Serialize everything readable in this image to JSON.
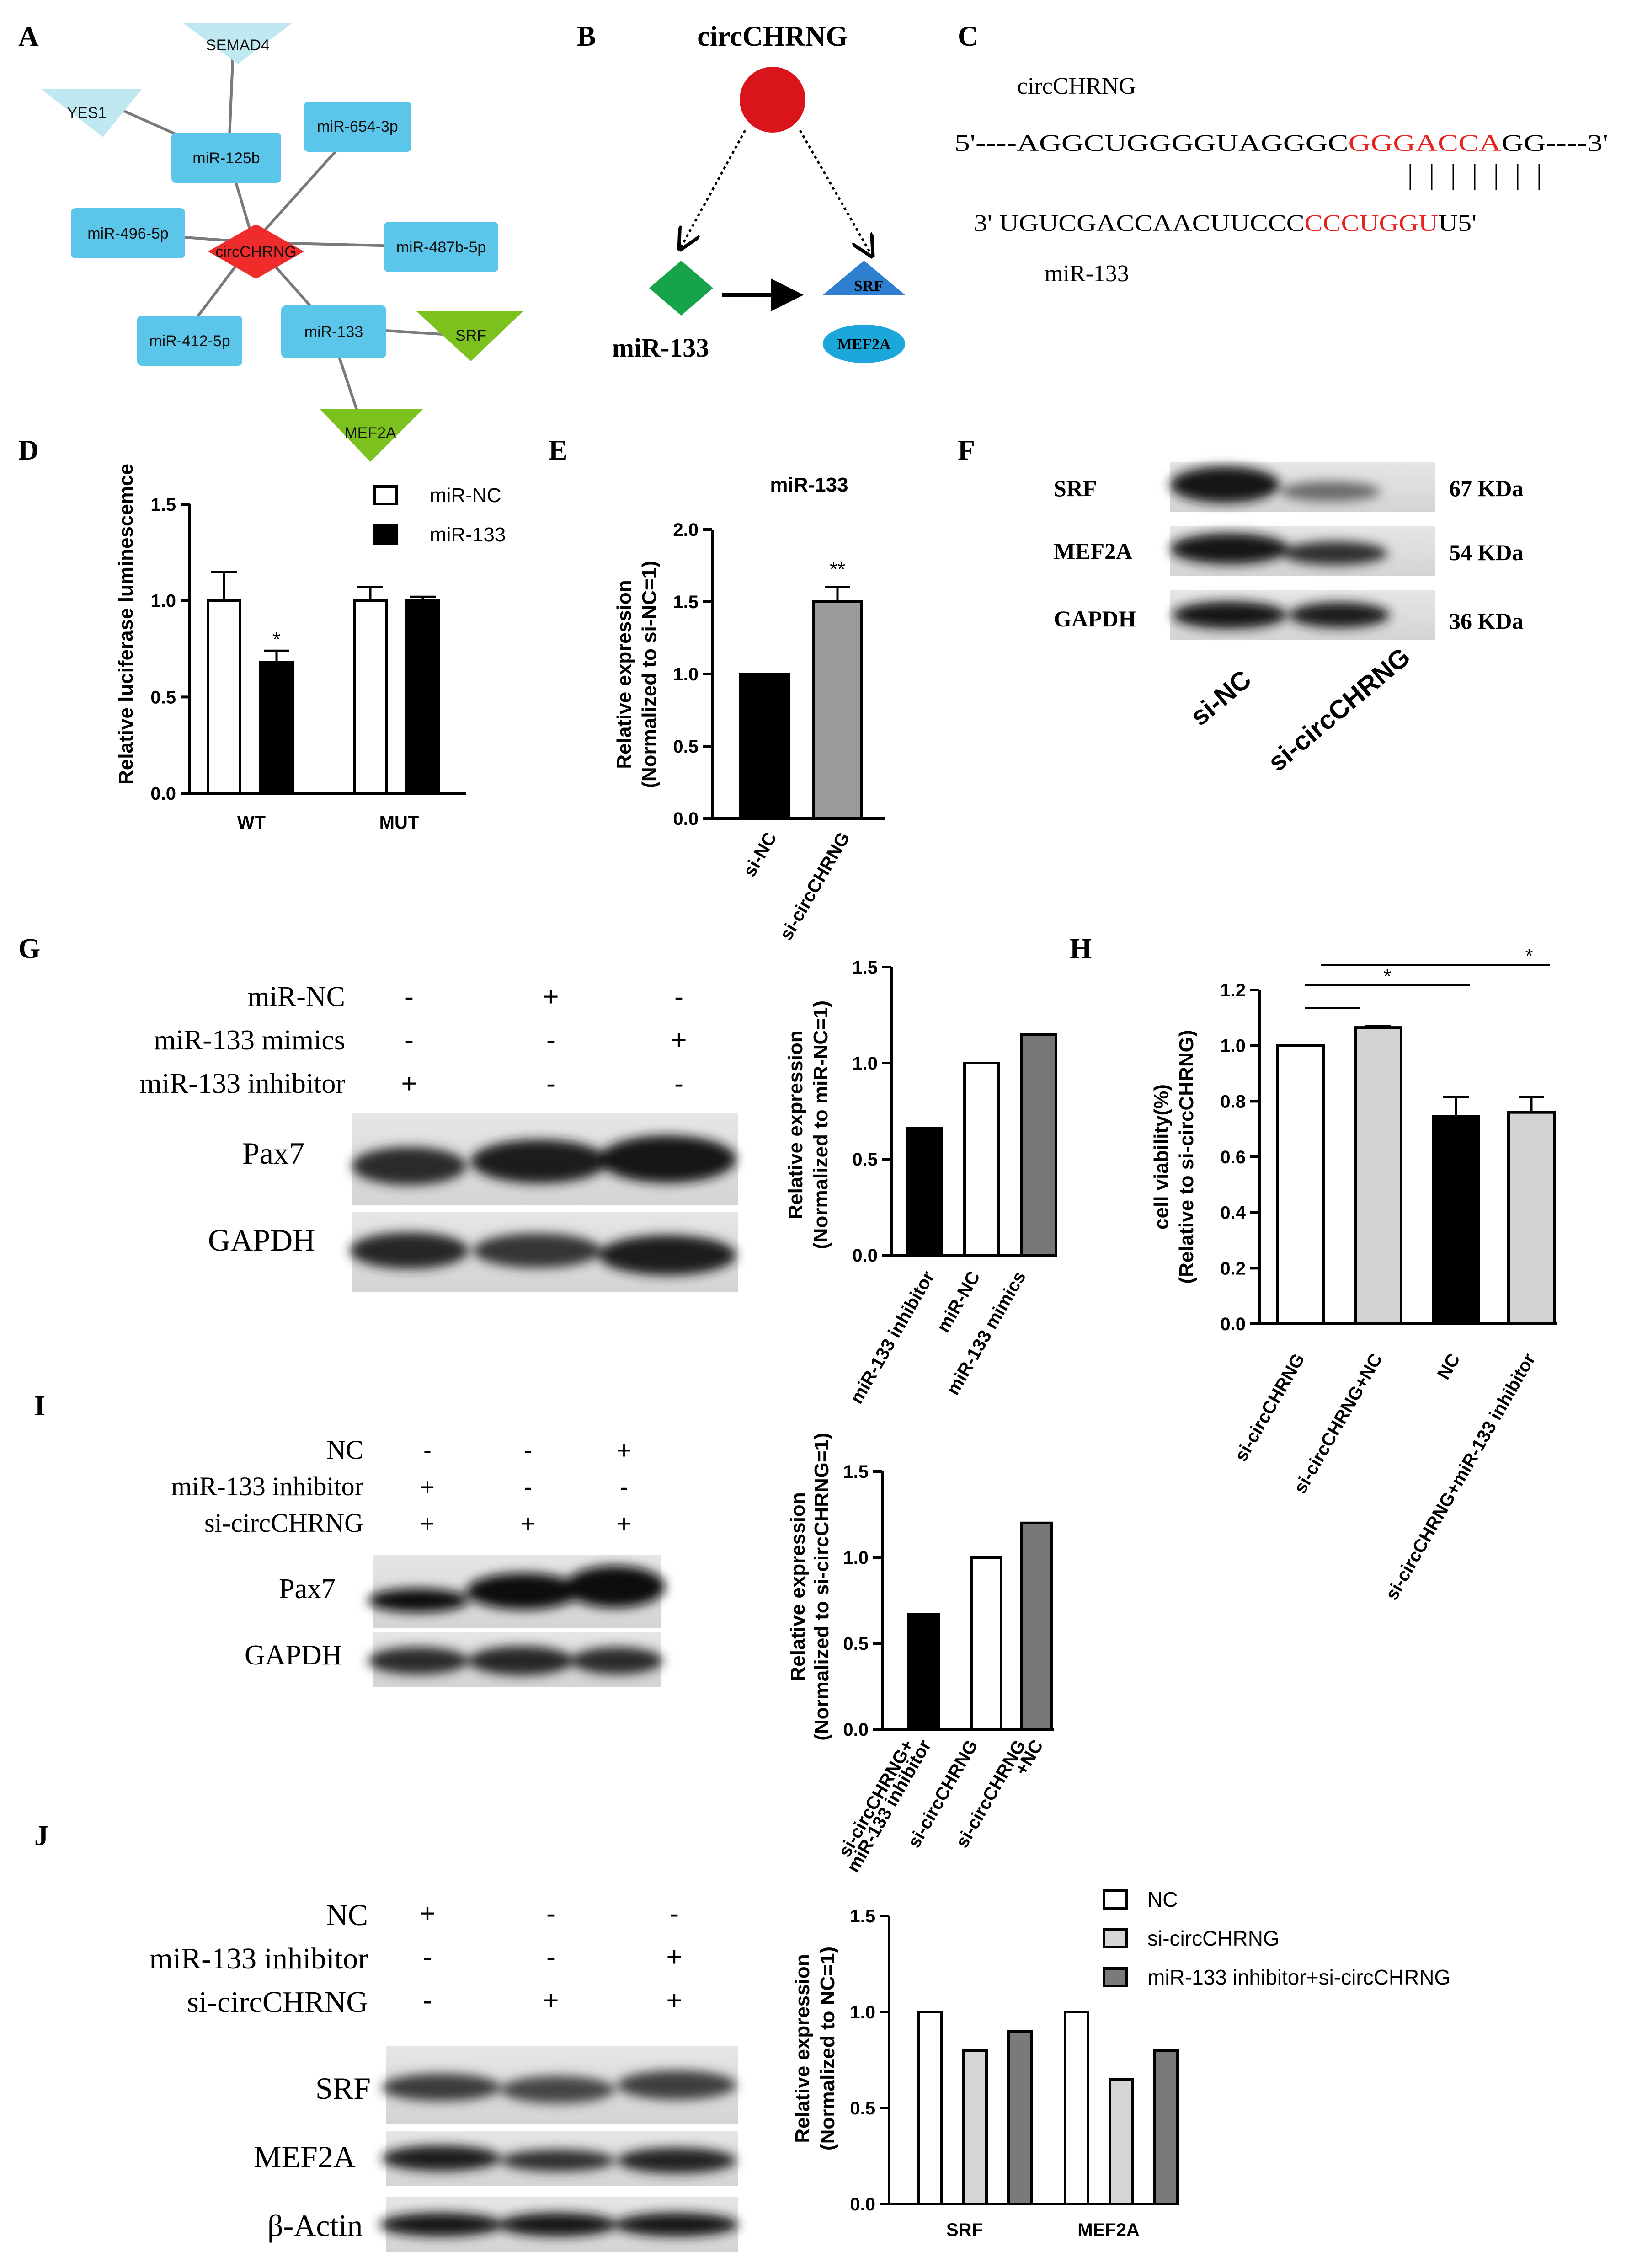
{
  "panels": {
    "A": "A",
    "B": "B",
    "C": "C",
    "D": "D",
    "E": "E",
    "F": "F",
    "G": "G",
    "H": "H",
    "I": "I",
    "J": "J"
  },
  "panel_a": {
    "hub": "circCHRNG",
    "mirnas": [
      "miR-125b",
      "miR-654-3p",
      "miR-496-5p",
      "miR-487b-5p",
      "miR-412-5p",
      "miR-133"
    ],
    "targets": [
      "SEMAD4",
      "YES1",
      "SRF",
      "MEF2A"
    ]
  },
  "panel_b": {
    "title": "circCHRNG",
    "mirna": "miR-133",
    "target1": "SRF",
    "target2": "MEF2A"
  },
  "panel_c": {
    "name_top": "circCHRNG",
    "top_prefix": "5'----AGGCUGGGGUAGGGC",
    "top_seed": "GGGACCA",
    "top_suffix": "GG----3'",
    "bottom_prefix": "3' UGUCGACCAACUUCCC",
    "bottom_seed": "CCCUGGU",
    "bottom_suffix": "U5'",
    "name_bottom": "miR-133",
    "seed_color": "#e8221f"
  },
  "panel_d": {
    "chart_data": {
      "type": "bar",
      "categories": [
        "WT",
        "MUT"
      ],
      "series": [
        {
          "name": "miR-NC",
          "values": [
            1.0,
            1.0
          ],
          "errors": [
            0.15,
            0.07
          ]
        },
        {
          "name": "miR-133",
          "values": [
            0.68,
            1.0
          ],
          "errors": [
            0.06,
            0.02
          ]
        }
      ],
      "ylabel": "Relative luciferase luminescemce",
      "ylim": [
        0,
        1.5
      ],
      "yticks": [
        "0.0",
        "0.5",
        "1.0",
        "1.5"
      ],
      "annotation": "*"
    }
  },
  "panel_e": {
    "chart_data": {
      "type": "bar",
      "title": "miR-133",
      "categories": [
        "si-NC",
        "si-circCHRNG"
      ],
      "values": [
        1.0,
        1.5
      ],
      "errors": [
        0,
        0.1
      ],
      "ylabel_1": "Relative expression",
      "ylabel_2": "(Normalized to si-NC=1)",
      "ylim": [
        0,
        2.0
      ],
      "yticks": [
        "0.0",
        "0.5",
        "1.0",
        "1.5",
        "2.0"
      ],
      "annotation": "**"
    }
  },
  "panel_f": {
    "proteins": [
      "SRF",
      "MEF2A",
      "GAPDH"
    ],
    "sizes": [
      "67 KDa",
      "54 KDa",
      "36 KDa"
    ],
    "lanes": [
      "si-NC",
      "si-circCHRNG"
    ]
  },
  "panel_g": {
    "conditions": [
      {
        "label": "miR-NC",
        "signs": [
          "-",
          "+",
          "-"
        ]
      },
      {
        "label": "miR-133 mimics",
        "signs": [
          "-",
          "-",
          "+"
        ]
      },
      {
        "label": "miR-133 inhibitor",
        "signs": [
          "+",
          "-",
          "-"
        ]
      }
    ],
    "blots": [
      "Pax7",
      "GAPDH"
    ],
    "chart_data": {
      "type": "bar",
      "categories": [
        "miR-133 inhibitor",
        "miR-NC",
        "miR-133 mimics"
      ],
      "values": [
        0.66,
        1.0,
        1.15
      ],
      "ylabel_1": "Relative expression",
      "ylabel_2": "(Normalized to miR-NC=1)",
      "ylim": [
        0,
        1.5
      ],
      "yticks": [
        "0.0",
        "0.5",
        "1.0",
        "1.5"
      ]
    }
  },
  "panel_h": {
    "chart_data": {
      "type": "bar",
      "categories": [
        "si-circCHRNG",
        "si-circCHRNG+NC",
        "NC",
        "si-circCHRNG+miR-133 inhibitor"
      ],
      "values": [
        1.0,
        1.065,
        0.745,
        0.76
      ],
      "errors": [
        0,
        0.005,
        0.07,
        0.055
      ],
      "ylabel_1": "cell viability(%)",
      "ylabel_2": "(Relative to si-circCHRNG)",
      "ylim": [
        0,
        1.2
      ],
      "yticks": [
        "0.0",
        "0.2",
        "0.4",
        "0.6",
        "0.8",
        "1.0",
        "1.2"
      ],
      "sig_1": "*",
      "sig_2": "*"
    }
  },
  "panel_i": {
    "conditions": [
      {
        "label": "NC",
        "signs": [
          "-",
          "-",
          "+"
        ]
      },
      {
        "label": "miR-133 inhibitor",
        "signs": [
          "+",
          "-",
          "-"
        ]
      },
      {
        "label": "si-circCHRNG",
        "signs": [
          "+",
          "+",
          "+"
        ]
      }
    ],
    "blots": [
      "Pax7",
      "GAPDH"
    ],
    "chart_data": {
      "type": "bar",
      "categories_l1": [
        "si-circCHRNG+",
        "si-circCHRNG",
        "si-circCHRNG"
      ],
      "categories_l2": [
        "miR-133 inhibitor",
        "",
        "+NC"
      ],
      "values": [
        0.67,
        1.0,
        1.2
      ],
      "ylabel_1": "Relative expression",
      "ylabel_2": "(Normalized to si-circCHRNG=1)",
      "ylim": [
        0,
        1.5
      ],
      "yticks": [
        "0.0",
        "0.5",
        "1.0",
        "1.5"
      ]
    }
  },
  "panel_j": {
    "conditions": [
      {
        "label": "NC",
        "signs": [
          "+",
          "-",
          "-"
        ]
      },
      {
        "label": "miR-133 inhibitor",
        "signs": [
          "-",
          "-",
          "+"
        ]
      },
      {
        "label": "si-circCHRNG",
        "signs": [
          "-",
          "+",
          "+"
        ]
      }
    ],
    "blots": [
      "SRF",
      "MEF2A",
      "β-Actin"
    ],
    "chart_data": {
      "type": "bar",
      "categories": [
        "SRF",
        "MEF2A"
      ],
      "series": [
        {
          "name": "NC",
          "values": [
            1.0,
            1.0
          ]
        },
        {
          "name": "si-circCHRNG",
          "values": [
            0.8,
            0.65
          ]
        },
        {
          "name": "miR-133 inhibitor+si-circCHRNG",
          "values": [
            0.9,
            0.8
          ]
        }
      ],
      "ylabel_1": "Relative expression",
      "ylabel_2": "(Normalized to NC=1)",
      "ylim": [
        0,
        1.5
      ],
      "yticks": [
        "0.0",
        "0.5",
        "1.0",
        "1.5"
      ]
    }
  }
}
